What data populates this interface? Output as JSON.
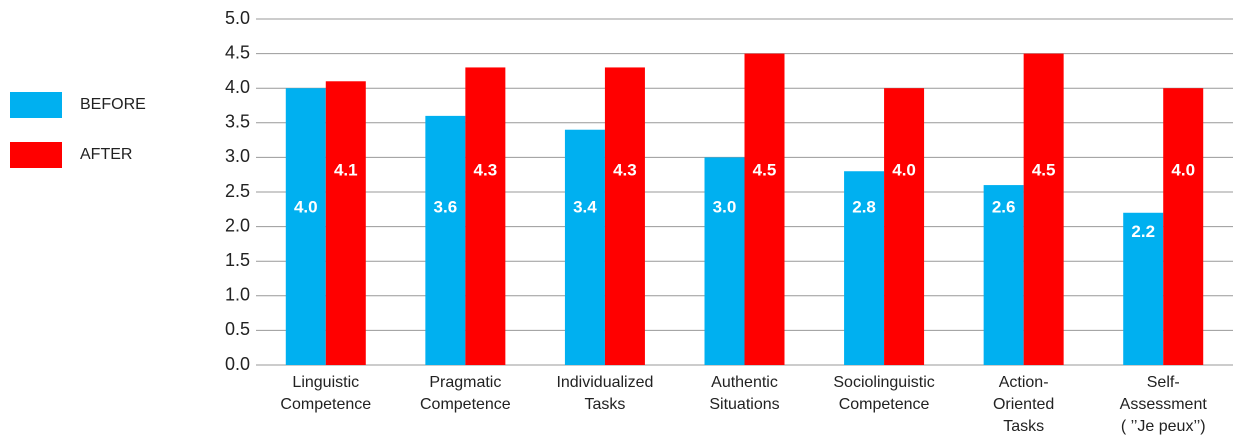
{
  "chart_data": {
    "type": "bar",
    "categories": [
      [
        "Linguistic",
        "Competence"
      ],
      [
        "Pragmatic",
        "Competence"
      ],
      [
        "Individualized",
        "Tasks"
      ],
      [
        "Authentic",
        "Situations"
      ],
      [
        "Sociolinguistic",
        "Competence"
      ],
      [
        "Action-",
        "Oriented",
        "Tasks"
      ],
      [
        "Self-",
        "Assessment",
        "( ’’Je peux’’)"
      ]
    ],
    "series": [
      {
        "name": "BEFORE",
        "color": "#00b0f0",
        "values": [
          4.0,
          3.6,
          3.4,
          3.0,
          2.8,
          2.6,
          2.2
        ],
        "value_labels": [
          "4.0",
          "3.6",
          "3.4",
          "3.0",
          "2.8",
          "2.6",
          "2.2"
        ]
      },
      {
        "name": "AFTER",
        "color": "#ff0000",
        "values": [
          4.1,
          4.3,
          4.3,
          4.5,
          4.0,
          4.5,
          4.0
        ],
        "value_labels": [
          "4.1",
          "4.3",
          "4.3",
          "4.5",
          "4.0",
          "4.5",
          "4.0"
        ]
      }
    ],
    "ylim": [
      0,
      5
    ],
    "yticks": [
      {
        "value": 0,
        "label": "0.0"
      },
      {
        "value": 0.5,
        "label": "0.5"
      },
      {
        "value": 1,
        "label": "1.0"
      },
      {
        "value": 1.5,
        "label": "1.5"
      },
      {
        "value": 2,
        "label": "2.0"
      },
      {
        "value": 2.5,
        "label": "2.5"
      },
      {
        "value": 3,
        "label": "3.0"
      },
      {
        "value": 3.5,
        "label": "3.5"
      },
      {
        "value": 4,
        "label": "4.0"
      },
      {
        "value": 4.5,
        "label": "4.5"
      },
      {
        "value": 5,
        "label": "5.0"
      }
    ],
    "grid": true,
    "legend": "left"
  }
}
